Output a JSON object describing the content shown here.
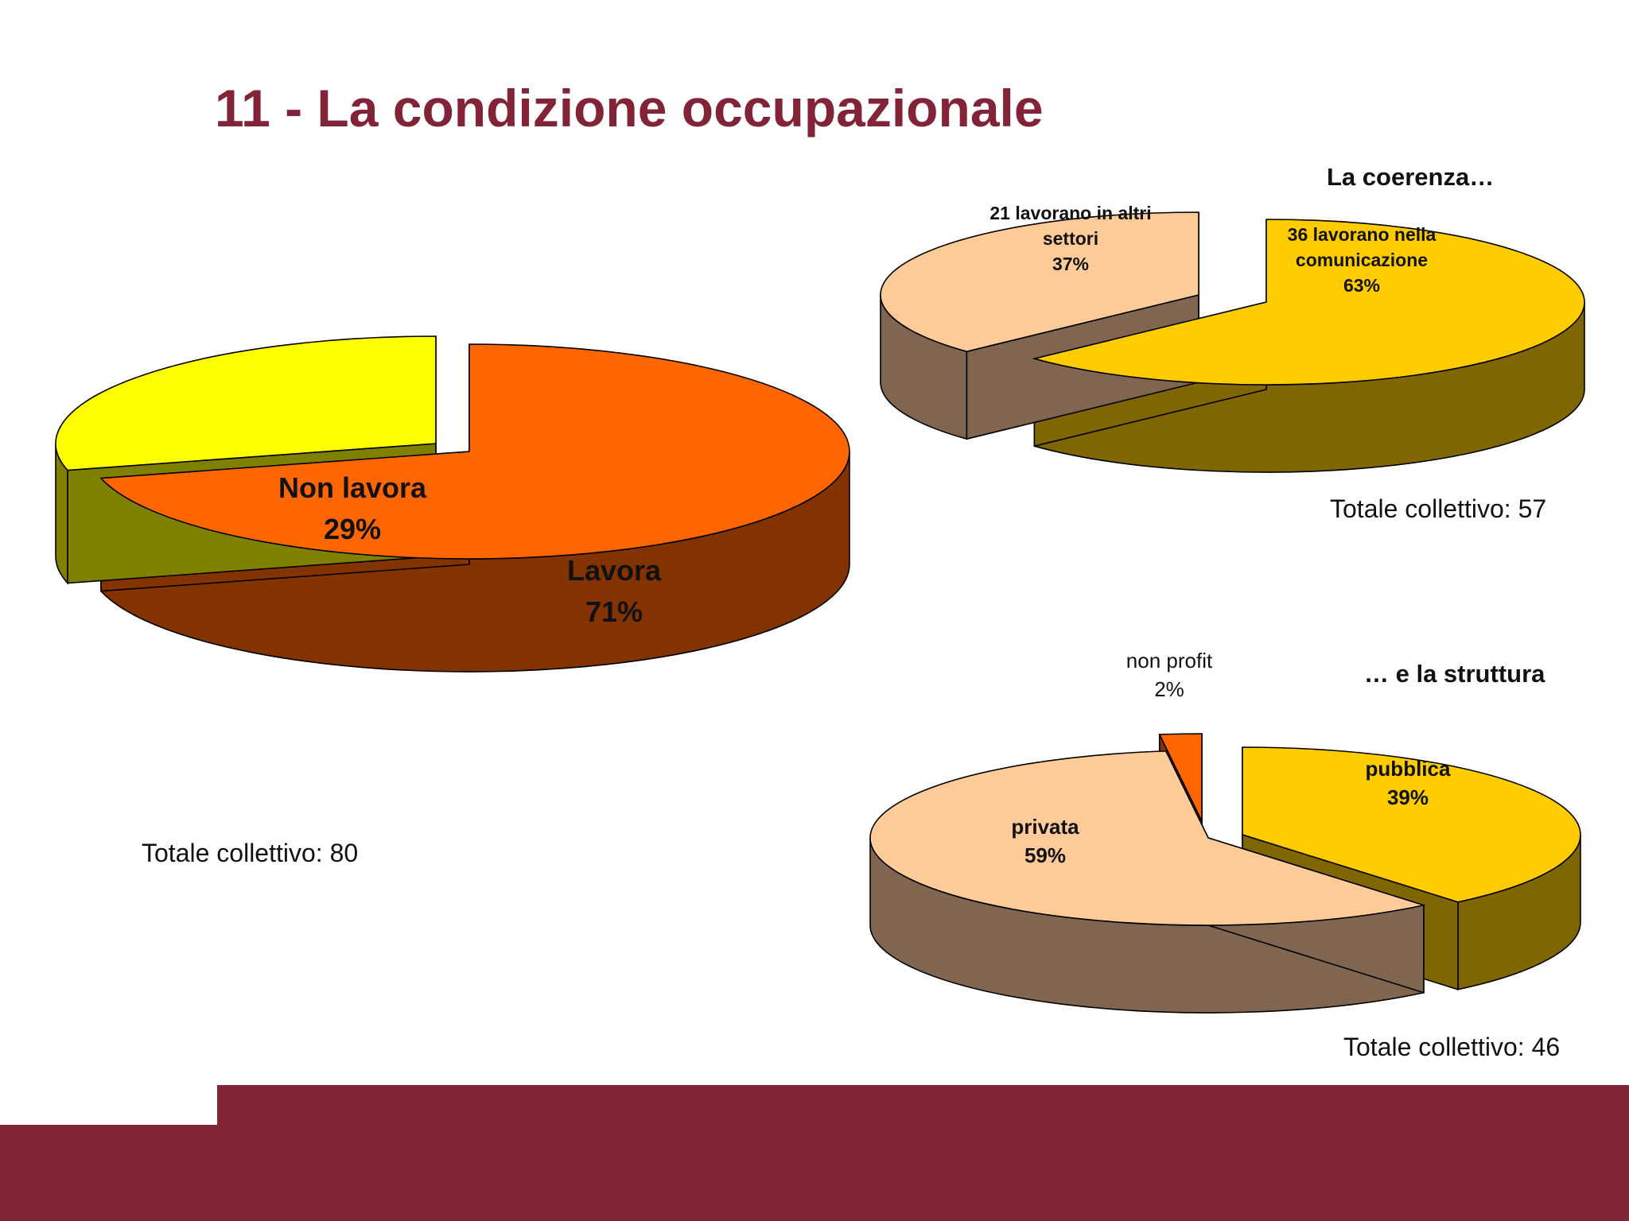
{
  "slide": {
    "title": "11 - La condizione occupazionale",
    "footer_color": "#822337"
  },
  "chart_data": [
    {
      "type": "pie",
      "title": "",
      "total_label": "Totale collettivo: 80",
      "slices": [
        {
          "label": [
            "Lavora",
            "71%"
          ],
          "value": 71,
          "color": "#FF6600",
          "side_color": "#833300"
        },
        {
          "label": [
            "Non lavora",
            "29%"
          ],
          "value": 29,
          "color": "#FFFF00",
          "side_color": "#808000"
        }
      ]
    },
    {
      "type": "pie",
      "title": "La coerenza…",
      "total_label": "Totale collettivo: 57",
      "slices": [
        {
          "label": [
            "36 lavorano nella",
            "comunicazione",
            "63%"
          ],
          "value": 63,
          "color": "#FFCC00",
          "side_color": "#806600"
        },
        {
          "label": [
            "21 lavorano in altri",
            "settori",
            "37%"
          ],
          "value": 37,
          "color": "#FFCC99",
          "side_color": "#806650"
        }
      ]
    },
    {
      "type": "pie",
      "title": "… e la struttura",
      "total_label": "Totale collettivo: 46",
      "slices": [
        {
          "label": [
            "pubblica",
            "39%"
          ],
          "value": 39,
          "color": "#FFCC00",
          "side_color": "#806600"
        },
        {
          "label": [
            "privata",
            "59%"
          ],
          "value": 59,
          "color": "#FFCC99",
          "side_color": "#806650"
        },
        {
          "label": [
            "non profit",
            "2%"
          ],
          "value": 2,
          "color": "#FF6600",
          "side_color": "#833300"
        }
      ]
    }
  ]
}
